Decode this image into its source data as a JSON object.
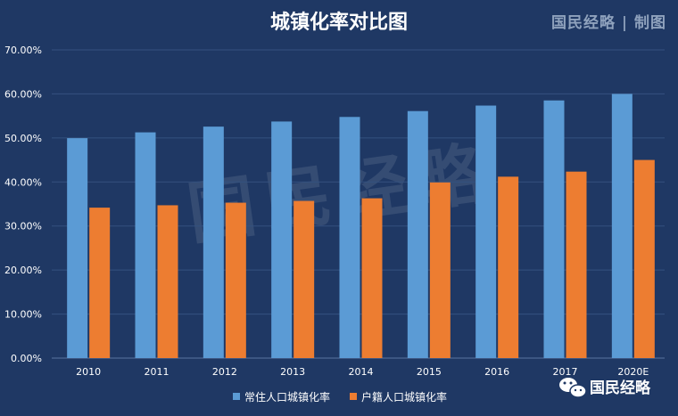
{
  "chart_data": {
    "type": "bar",
    "title": "城镇化率对比图",
    "categories": [
      "2010",
      "2011",
      "2012",
      "2013",
      "2014",
      "2015",
      "2016",
      "2017",
      "2020E"
    ],
    "series": [
      {
        "name": "常住人口城镇化率",
        "color": "#5b9bd5",
        "values": [
          49.95,
          51.27,
          52.57,
          53.73,
          54.77,
          56.1,
          57.35,
          58.52,
          60.0
        ]
      },
      {
        "name": "户籍人口城镇化率",
        "color": "#ed7d31",
        "values": [
          34.17,
          34.71,
          35.29,
          35.7,
          36.3,
          39.9,
          41.2,
          42.35,
          45.0
        ]
      }
    ],
    "y_ticks": [
      "0.00%",
      "10.00%",
      "20.00%",
      "30.00%",
      "40.00%",
      "50.00%",
      "60.00%",
      "70.00%"
    ],
    "ylim": [
      0,
      70
    ],
    "grid": true,
    "legend_position": "bottom"
  },
  "branding": {
    "header_mark": "国民经略 | 制图",
    "watermark": "国民经略",
    "wechat_label": "国民经略"
  },
  "icons": {
    "wechat": "wechat-icon"
  },
  "colors": {
    "background": "#1f3864",
    "gridline": "#35517f"
  }
}
